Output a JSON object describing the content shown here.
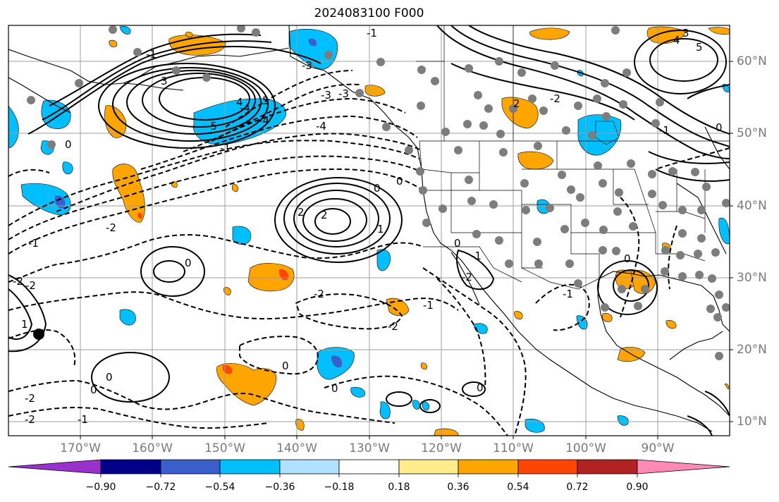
{
  "title": "2024083100 F000",
  "lon_labels": [
    "170°W",
    "160°W",
    "150°W",
    "140°W",
    "130°W",
    "120°W",
    "110°W",
    "100°W",
    "90°W"
  ],
  "lat_labels": [
    "60°N",
    "50°N",
    "40°N",
    "30°N",
    "20°N",
    "10°N"
  ],
  "colorbar": {
    "ticks": [
      "−0.90",
      "−0.72",
      "−0.54",
      "−0.36",
      "−0.18",
      "0.18",
      "0.36",
      "0.54",
      "0.72",
      "0.90"
    ],
    "colors": [
      "#9932cc",
      "#00008b",
      "#3a5fcd",
      "#00bfff",
      "#b0e2ff",
      "#ffffff",
      "#ffec8b",
      "#ffa500",
      "#ff4500",
      "#b22222",
      "#ff8ab4"
    ]
  },
  "contour_labels": [
    "-1",
    "-1",
    "-1",
    "-2",
    "-2",
    "-2",
    "-3",
    "-4",
    "-4",
    "-5",
    "-4",
    "-3",
    "-2",
    "-1",
    "-2",
    "0",
    "0",
    "0",
    "0",
    "0",
    "0",
    "0",
    "1",
    "1",
    "2",
    "2",
    "3",
    "4",
    "5",
    "-1",
    "0",
    "-1",
    "-2",
    "-2",
    "-1",
    "-2",
    "0",
    "0",
    "-1",
    "-3",
    "-2",
    "2",
    "3",
    "4",
    "5",
    "0",
    "-1",
    "0"
  ],
  "map_elements": [
    "coastlines",
    "state-borders",
    "lat-lon-grid",
    "contours",
    "shaded-anomalies",
    "station-dots"
  ]
}
